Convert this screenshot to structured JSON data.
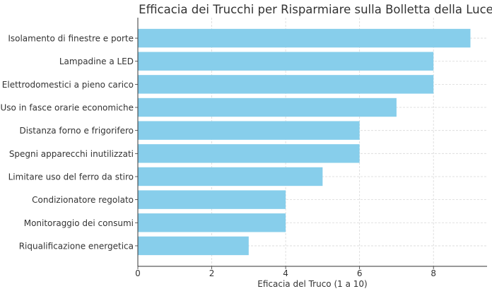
{
  "chart_data": {
    "type": "bar",
    "orientation": "horizontal",
    "title": "Efficacia dei Trucchi per Risparmiare sulla Bolletta della Luce",
    "xlabel": "Eficacia del Truco (1 a 10)",
    "ylabel": "",
    "categories": [
      "Isolamento di finestre e porte",
      "Lampadine a LED",
      "Elettrodomestici a pieno carico",
      "Uso in fasce orarie economiche",
      "Distanza forno e frigorifero",
      "Spegni apparecchi inutilizzati",
      "Limitare uso del ferro da stiro",
      "Condizionatore regolato",
      "Monitoraggio dei consumi",
      "Riqualificazione energetica"
    ],
    "values": [
      9,
      8,
      8,
      7,
      6,
      6,
      5,
      4,
      4,
      3
    ],
    "xlim": [
      0,
      9.45
    ],
    "xticks": [
      "0",
      "2",
      "4",
      "6",
      "8"
    ],
    "grid": true,
    "bar_color": "#87CEEB"
  }
}
